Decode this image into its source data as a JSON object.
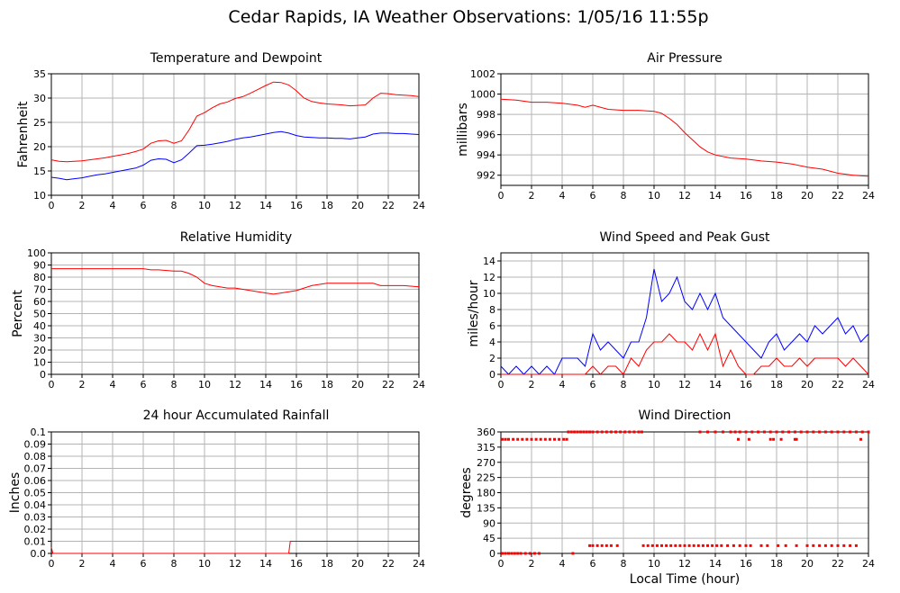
{
  "page": {
    "title": "Cedar Rapids, IA Weather Observations: 1/05/16 11:55p",
    "xlabel": "Local Time (hour)"
  },
  "colors": {
    "red": "#ff0000",
    "blue": "#0000ff",
    "grid": "#b4b4b4",
    "axis": "#000000"
  },
  "chart_data": [
    {
      "id": "temp",
      "type": "line",
      "title": "Temperature and Dewpoint",
      "xlabel": "",
      "ylabel": "Fahrenheit",
      "xlim": [
        0,
        24
      ],
      "ylim": [
        10,
        35
      ],
      "xticks": [
        0,
        2,
        4,
        6,
        8,
        10,
        12,
        14,
        16,
        18,
        20,
        22,
        24
      ],
      "yticks": [
        10,
        15,
        20,
        25,
        30,
        35
      ],
      "series": [
        {
          "color": "red",
          "x": [
            0,
            0.5,
            1,
            1.5,
            2,
            2.5,
            3,
            3.5,
            4,
            4.5,
            5,
            5.5,
            6,
            6.5,
            7,
            7.5,
            8,
            8.5,
            9,
            9.5,
            10,
            10.5,
            11,
            11.5,
            12,
            12.5,
            13,
            13.5,
            14,
            14.5,
            15,
            15.5,
            16,
            16.5,
            17,
            17.5,
            18,
            18.5,
            19,
            19.5,
            20,
            20.5,
            21,
            21.5,
            22,
            22.5,
            23,
            23.5,
            24
          ],
          "values": [
            17.3,
            17.0,
            16.9,
            17.0,
            17.1,
            17.3,
            17.5,
            17.7,
            18.0,
            18.3,
            18.6,
            19.0,
            19.5,
            20.7,
            21.2,
            21.3,
            20.7,
            21.2,
            23.5,
            26.3,
            27.0,
            28.0,
            28.8,
            29.2,
            29.9,
            30.3,
            31.0,
            31.8,
            32.6,
            33.3,
            33.2,
            32.7,
            31.5,
            30.0,
            29.3,
            29.0,
            28.8,
            28.7,
            28.6,
            28.4,
            28.5,
            28.6,
            30.0,
            31.0,
            30.9,
            30.7,
            30.6,
            30.5,
            30.3
          ]
        },
        {
          "color": "blue",
          "x": [
            0,
            0.5,
            1,
            1.5,
            2,
            2.5,
            3,
            3.5,
            4,
            4.5,
            5,
            5.5,
            6,
            6.5,
            7,
            7.5,
            8,
            8.5,
            9,
            9.5,
            10,
            10.5,
            11,
            11.5,
            12,
            12.5,
            13,
            13.5,
            14,
            14.5,
            15,
            15.5,
            16,
            16.5,
            17,
            17.5,
            18,
            18.5,
            19,
            19.5,
            20,
            20.5,
            21,
            21.5,
            22,
            22.5,
            23,
            23.5,
            24
          ],
          "values": [
            13.7,
            13.5,
            13.2,
            13.4,
            13.6,
            13.9,
            14.2,
            14.4,
            14.7,
            15.0,
            15.3,
            15.6,
            16.2,
            17.2,
            17.5,
            17.4,
            16.7,
            17.3,
            18.7,
            20.2,
            20.3,
            20.5,
            20.8,
            21.1,
            21.5,
            21.8,
            22.0,
            22.3,
            22.6,
            22.9,
            23.1,
            22.8,
            22.3,
            22.0,
            21.9,
            21.8,
            21.8,
            21.7,
            21.7,
            21.6,
            21.8,
            22.0,
            22.6,
            22.8,
            22.8,
            22.7,
            22.7,
            22.6,
            22.5
          ]
        }
      ]
    },
    {
      "id": "pressure",
      "type": "line",
      "title": "Air Pressure",
      "xlabel": "",
      "ylabel": "millibars",
      "xlim": [
        0,
        24
      ],
      "ylim": [
        991,
        1002
      ],
      "xticks": [
        0,
        2,
        4,
        6,
        8,
        10,
        12,
        14,
        16,
        18,
        20,
        22,
        24
      ],
      "yticks": [
        992,
        994,
        996,
        998,
        1000,
        1002
      ],
      "series": [
        {
          "color": "red",
          "x": [
            0,
            1,
            2,
            3,
            4,
            5,
            5.5,
            6,
            7,
            8,
            9,
            10,
            10.5,
            11,
            11.5,
            12,
            12.5,
            13,
            13.5,
            14,
            15,
            16,
            17,
            18,
            19,
            20,
            21,
            22,
            23,
            24
          ],
          "values": [
            999.5,
            999.4,
            999.2,
            999.2,
            999.1,
            998.9,
            998.7,
            998.9,
            998.5,
            998.4,
            998.4,
            998.3,
            998.1,
            997.6,
            997.0,
            996.2,
            995.5,
            994.8,
            994.3,
            994.0,
            993.7,
            993.6,
            993.4,
            993.3,
            993.1,
            992.8,
            992.6,
            992.2,
            992.0,
            991.9
          ]
        }
      ]
    },
    {
      "id": "humidity",
      "type": "line",
      "title": "Relative Humidity",
      "xlabel": "",
      "ylabel": "Percent",
      "xlim": [
        0,
        24
      ],
      "ylim": [
        0,
        100
      ],
      "xticks": [
        0,
        2,
        4,
        6,
        8,
        10,
        12,
        14,
        16,
        18,
        20,
        22,
        24
      ],
      "yticks": [
        0,
        10,
        20,
        30,
        40,
        50,
        60,
        70,
        80,
        90,
        100
      ],
      "series": [
        {
          "color": "red",
          "x": [
            0,
            1,
            2,
            3,
            4,
            5,
            6,
            6.5,
            7,
            8,
            8.5,
            9,
            9.5,
            10,
            10.5,
            11,
            11.5,
            12,
            12.5,
            13,
            13.5,
            14,
            14.5,
            15,
            16,
            17,
            18,
            19,
            20,
            21,
            21.5,
            22,
            23,
            24
          ],
          "values": [
            87,
            87,
            87,
            87,
            87,
            87,
            87,
            86,
            86,
            85,
            85,
            83,
            80,
            75,
            73,
            72,
            71,
            71,
            70,
            69,
            68,
            67,
            66,
            67,
            69,
            73,
            75,
            75,
            75,
            75,
            73,
            73,
            73,
            72
          ]
        }
      ]
    },
    {
      "id": "wind",
      "type": "line",
      "title": "Wind Speed and Peak Gust",
      "xlabel": "",
      "ylabel": "miles/hour",
      "xlim": [
        0,
        24
      ],
      "ylim": [
        0,
        15
      ],
      "xticks": [
        0,
        2,
        4,
        6,
        8,
        10,
        12,
        14,
        16,
        18,
        20,
        22,
        24
      ],
      "yticks": [
        0,
        2,
        4,
        6,
        8,
        10,
        12,
        14
      ],
      "series": [
        {
          "color": "blue",
          "x": [
            0,
            0.5,
            1,
            1.5,
            2,
            2.5,
            3,
            3.5,
            4,
            4.5,
            5,
            5.5,
            6,
            6.5,
            7,
            7.5,
            8,
            8.5,
            9,
            9.5,
            10,
            10.5,
            11,
            11.5,
            12,
            12.5,
            13,
            13.5,
            14,
            14.5,
            15,
            15.5,
            16,
            16.5,
            17,
            17.5,
            18,
            18.5,
            19,
            19.5,
            20,
            20.5,
            21,
            21.5,
            22,
            22.5,
            23,
            23.5,
            24
          ],
          "values": [
            1,
            0,
            1,
            0,
            1,
            0,
            1,
            0,
            2,
            2,
            2,
            1,
            5,
            3,
            4,
            3,
            2,
            4,
            4,
            7,
            13,
            9,
            10,
            12,
            9,
            8,
            10,
            8,
            10,
            7,
            6,
            5,
            4,
            3,
            2,
            4,
            5,
            3,
            4,
            5,
            4,
            6,
            5,
            6,
            7,
            5,
            6,
            4,
            5
          ]
        },
        {
          "color": "red",
          "x": [
            0,
            0.5,
            1,
            1.5,
            2,
            2.5,
            3,
            3.5,
            4,
            4.5,
            5,
            5.5,
            6,
            6.5,
            7,
            7.5,
            8,
            8.5,
            9,
            9.5,
            10,
            10.5,
            11,
            11.5,
            12,
            12.5,
            13,
            13.5,
            14,
            14.5,
            15,
            15.5,
            16,
            16.5,
            17,
            17.5,
            18,
            18.5,
            19,
            19.5,
            20,
            20.5,
            21,
            21.5,
            22,
            22.5,
            23,
            23.5,
            24
          ],
          "values": [
            0,
            0,
            0,
            0,
            0,
            0,
            0,
            0,
            0,
            0,
            0,
            0,
            1,
            0,
            1,
            1,
            0,
            2,
            1,
            3,
            4,
            4,
            5,
            4,
            4,
            3,
            5,
            3,
            5,
            1,
            3,
            1,
            0,
            0,
            1,
            1,
            2,
            1,
            1,
            2,
            1,
            2,
            2,
            2,
            2,
            1,
            2,
            1,
            0
          ]
        }
      ]
    },
    {
      "id": "rain",
      "type": "line",
      "title": "24 hour Accumulated Rainfall",
      "xlabel": "",
      "ylabel": "Inches",
      "xlim": [
        0,
        24
      ],
      "ylim": [
        0,
        0.1
      ],
      "xticks": [
        0,
        2,
        4,
        6,
        8,
        10,
        12,
        14,
        16,
        18,
        20,
        22,
        24
      ],
      "yticks": [
        "0.0",
        "0.01",
        "0.02",
        "0.03",
        "0.04",
        "0.05",
        "0.06",
        "0.07",
        "0.08",
        "0.09",
        "0.1"
      ],
      "series": [
        {
          "color": "red",
          "x": [
            0,
            0.1,
            15.5,
            15.6,
            24
          ],
          "values": [
            0.005,
            0,
            0,
            0.01,
            0.01
          ]
        }
      ]
    },
    {
      "id": "direction",
      "type": "scatter",
      "title": "Wind Direction",
      "xlabel": "",
      "ylabel": "degrees",
      "xlim": [
        0,
        24
      ],
      "ylim": [
        0,
        360
      ],
      "xticks": [
        0,
        2,
        4,
        6,
        8,
        10,
        12,
        14,
        16,
        18,
        20,
        22,
        24
      ],
      "yticks": [
        0,
        45,
        90,
        135,
        180,
        225,
        270,
        315,
        360
      ],
      "series": [
        {
          "color": "red",
          "x": [
            0.1,
            0.3,
            0.5,
            0.7,
            0.9,
            1.1,
            1.3,
            1.6,
            1.9,
            2.2,
            2.5,
            0.1,
            0.3,
            0.5,
            0.8,
            1.1,
            1.4,
            1.7,
            2.0,
            2.3,
            2.6,
            2.9,
            3.2,
            3.5,
            3.8,
            4.1,
            4.3,
            4.4,
            4.6,
            4.8,
            5.0,
            5.2,
            5.4,
            5.6,
            5.8,
            6.0,
            6.3,
            6.6,
            6.9,
            7.2,
            7.5,
            7.8,
            8.1,
            8.4,
            8.7,
            9.0,
            9.2,
            5.8,
            6.0,
            6.3,
            6.6,
            6.9,
            7.2,
            7.6,
            9.3,
            9.6,
            9.9,
            10.2,
            10.5,
            10.8,
            11.1,
            11.4,
            11.7,
            12.0,
            12.3,
            12.6,
            12.9,
            13.2,
            13.5,
            13.8,
            14.1,
            14.4,
            14.8,
            15.2,
            15.6,
            16.0,
            16.3,
            17.0,
            17.4,
            18.1,
            18.6,
            19.3,
            20.0,
            20.4,
            20.8,
            21.2,
            21.6,
            22.0,
            22.4,
            22.8,
            23.2,
            4.7,
            13.0,
            13.5,
            14.0,
            14.5,
            15.0,
            15.3,
            15.6,
            16.0,
            16.4,
            16.8,
            17.2,
            17.6,
            18.0,
            18.4,
            18.8,
            19.2,
            19.6,
            20.0,
            20.4,
            20.8,
            21.2,
            21.6,
            22.0,
            22.4,
            22.8,
            23.2,
            23.6,
            24.0,
            15.5,
            16.2,
            17.6,
            17.8,
            18.3,
            19.2,
            19.3,
            23.5
          ],
          "values": [
            0,
            0,
            0,
            0,
            0,
            0,
            0,
            0,
            0,
            0,
            0,
            338,
            338,
            338,
            338,
            338,
            338,
            338,
            338,
            338,
            338,
            338,
            338,
            338,
            338,
            338,
            338,
            360,
            360,
            360,
            360,
            360,
            360,
            360,
            360,
            360,
            360,
            360,
            360,
            360,
            360,
            360,
            360,
            360,
            360,
            360,
            360,
            23,
            23,
            23,
            23,
            23,
            23,
            23,
            23,
            23,
            23,
            23,
            23,
            23,
            23,
            23,
            23,
            23,
            23,
            23,
            23,
            23,
            23,
            23,
            23,
            23,
            23,
            23,
            23,
            23,
            23,
            23,
            23,
            23,
            23,
            23,
            23,
            23,
            23,
            23,
            23,
            23,
            23,
            23,
            23,
            0,
            360,
            360,
            360,
            360,
            360,
            360,
            360,
            360,
            360,
            360,
            360,
            360,
            360,
            360,
            360,
            360,
            360,
            360,
            360,
            360,
            360,
            360,
            360,
            360,
            360,
            360,
            360,
            360,
            338,
            338,
            338,
            338,
            338,
            338,
            338,
            338
          ]
        }
      ]
    }
  ]
}
